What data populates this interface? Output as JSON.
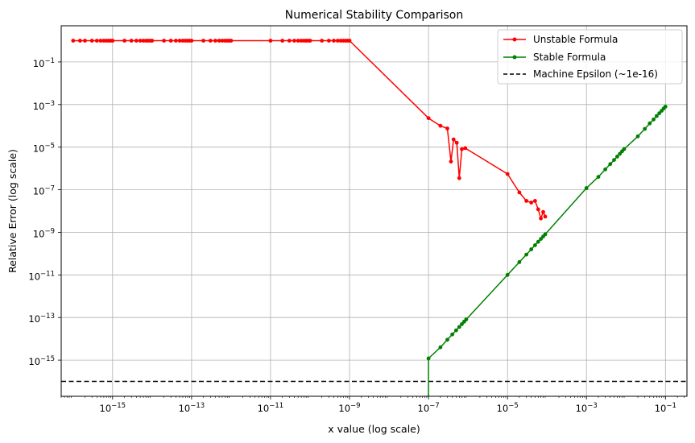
{
  "chart_data": {
    "type": "line",
    "title": "Numerical Stability Comparison",
    "xlabel": "x value (log scale)",
    "ylabel": "Relative Error (log scale)",
    "xscale": "log",
    "yscale": "log",
    "xlim": [
      5e-17,
      0.35
    ],
    "ylim": [
      2e-17,
      5
    ],
    "grid": true,
    "legend_position": "top-right",
    "x_ticks": [
      {
        "value": 1e-15,
        "base": "10",
        "exp": "−15"
      },
      {
        "value": 1e-13,
        "base": "10",
        "exp": "−13"
      },
      {
        "value": 1e-11,
        "base": "10",
        "exp": "−11"
      },
      {
        "value": 1e-09,
        "base": "10",
        "exp": "−9"
      },
      {
        "value": 1e-07,
        "base": "10",
        "exp": "−7"
      },
      {
        "value": 1e-05,
        "base": "10",
        "exp": "−5"
      },
      {
        "value": 0.001,
        "base": "10",
        "exp": "−3"
      },
      {
        "value": 0.1,
        "base": "10",
        "exp": "−1"
      }
    ],
    "y_ticks": [
      {
        "value": 1e-15,
        "base": "10",
        "exp": "−15"
      },
      {
        "value": 1e-13,
        "base": "10",
        "exp": "−13"
      },
      {
        "value": 1e-11,
        "base": "10",
        "exp": "−11"
      },
      {
        "value": 1e-09,
        "base": "10",
        "exp": "−9"
      },
      {
        "value": 1e-07,
        "base": "10",
        "exp": "−7"
      },
      {
        "value": 1e-05,
        "base": "10",
        "exp": "−5"
      },
      {
        "value": 0.001,
        "base": "10",
        "exp": "−3"
      },
      {
        "value": 0.1,
        "base": "10",
        "exp": "−1"
      }
    ],
    "series": [
      {
        "name": "Unstable Formula",
        "color": "#ff0000",
        "marker": "circle",
        "points": [
          [
            1e-16,
            1
          ],
          [
            1.5e-16,
            1
          ],
          [
            2e-16,
            1
          ],
          [
            3e-16,
            1
          ],
          [
            4e-16,
            1
          ],
          [
            5e-16,
            1
          ],
          [
            6e-16,
            1
          ],
          [
            7e-16,
            1
          ],
          [
            8e-16,
            1
          ],
          [
            9e-16,
            1
          ],
          [
            1e-15,
            1
          ],
          [
            2e-15,
            1
          ],
          [
            3e-15,
            1
          ],
          [
            4e-15,
            1
          ],
          [
            5e-15,
            1
          ],
          [
            6e-15,
            1
          ],
          [
            7e-15,
            1
          ],
          [
            8e-15,
            1
          ],
          [
            9e-15,
            1
          ],
          [
            1e-14,
            1
          ],
          [
            2e-14,
            1
          ],
          [
            3e-14,
            1
          ],
          [
            4e-14,
            1
          ],
          [
            5e-14,
            1
          ],
          [
            6e-14,
            1
          ],
          [
            7e-14,
            1
          ],
          [
            8e-14,
            1
          ],
          [
            9e-14,
            1
          ],
          [
            1e-13,
            1
          ],
          [
            2e-13,
            1
          ],
          [
            3e-13,
            1
          ],
          [
            4e-13,
            1
          ],
          [
            5e-13,
            1
          ],
          [
            6e-13,
            1
          ],
          [
            7e-13,
            1
          ],
          [
            8e-13,
            1
          ],
          [
            9e-13,
            1
          ],
          [
            1e-12,
            1
          ],
          [
            1e-11,
            1
          ],
          [
            2e-11,
            1
          ],
          [
            3e-11,
            1
          ],
          [
            4e-11,
            1
          ],
          [
            5e-11,
            1
          ],
          [
            6e-11,
            1
          ],
          [
            7e-11,
            1
          ],
          [
            8e-11,
            1
          ],
          [
            9e-11,
            1
          ],
          [
            1e-10,
            1
          ],
          [
            2e-10,
            1
          ],
          [
            3e-10,
            1
          ],
          [
            4e-10,
            1
          ],
          [
            5e-10,
            1
          ],
          [
            6e-10,
            1
          ],
          [
            7e-10,
            1
          ],
          [
            8e-10,
            1
          ],
          [
            9e-10,
            1
          ],
          [
            1e-09,
            1
          ],
          [
            1e-07,
            0.00023
          ],
          [
            2e-07,
            0.0001
          ],
          [
            3e-07,
            7.5e-05
          ],
          [
            3.7e-07,
            2.1e-06
          ],
          [
            4.3e-07,
            2.3e-05
          ],
          [
            5.2e-07,
            1.6e-05
          ],
          [
            6e-07,
            3.5e-07
          ],
          [
            7e-07,
            8e-06
          ],
          [
            8.5e-07,
            9e-06
          ],
          [
            1e-05,
            5.5e-07
          ],
          [
            2e-05,
            7.5e-08
          ],
          [
            3e-05,
            3e-08
          ],
          [
            4e-05,
            2.5e-08
          ],
          [
            5e-05,
            3e-08
          ],
          [
            6e-05,
            1.2e-08
          ],
          [
            7e-05,
            4.5e-09
          ],
          [
            8e-05,
            9e-09
          ],
          [
            9e-05,
            5.5e-09
          ]
        ]
      },
      {
        "name": "Stable Formula",
        "color": "#008000",
        "marker": "circle",
        "points": [
          [
            1e-07,
            1.2e-15
          ],
          [
            2e-07,
            4e-15
          ],
          [
            3e-07,
            9e-15
          ],
          [
            4e-07,
            1.6e-14
          ],
          [
            5e-07,
            2.5e-14
          ],
          [
            6e-07,
            3.6e-14
          ],
          [
            7e-07,
            4.9e-14
          ],
          [
            8e-07,
            6.4e-14
          ],
          [
            9e-07,
            8.1e-14
          ],
          [
            1e-05,
            1e-11
          ],
          [
            2e-05,
            4e-11
          ],
          [
            3e-05,
            9e-11
          ],
          [
            4e-05,
            1.6e-10
          ],
          [
            5e-05,
            2.5e-10
          ],
          [
            6e-05,
            3.6e-10
          ],
          [
            7e-05,
            4.9e-10
          ],
          [
            8e-05,
            6.4e-10
          ],
          [
            9e-05,
            8.1e-10
          ],
          [
            0.001,
            1.2e-07
          ],
          [
            0.002,
            4e-07
          ],
          [
            0.003,
            9e-07
          ],
          [
            0.004,
            1.6e-06
          ],
          [
            0.005,
            2.5e-06
          ],
          [
            0.006,
            3.6e-06
          ],
          [
            0.007,
            4.9e-06
          ],
          [
            0.008,
            6.4e-06
          ],
          [
            0.009,
            8.1e-06
          ],
          [
            0.02,
            3.2e-05
          ],
          [
            0.03,
            7.2e-05
          ],
          [
            0.04,
            0.00013
          ],
          [
            0.05,
            0.0002
          ],
          [
            0.06,
            0.00029
          ],
          [
            0.07,
            0.00039
          ],
          [
            0.08,
            0.00051
          ],
          [
            0.09,
            0.00065
          ],
          [
            0.1,
            0.0008
          ]
        ],
        "drop_to_zero_at": 1e-07
      }
    ],
    "hlines": [
      {
        "name": "Machine Epsilon (~1e-16)",
        "value": 1e-16,
        "color": "#000000",
        "style": "dashed"
      }
    ]
  }
}
